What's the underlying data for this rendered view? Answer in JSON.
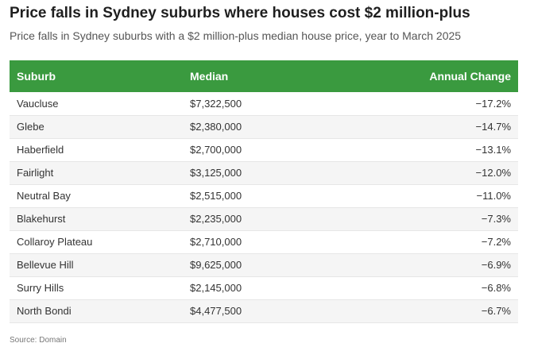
{
  "title": "Price falls in Sydney suburbs where houses cost $2 million-plus",
  "subtitle": "Price falls in Sydney suburbs with a $2 million-plus median house price, year to March 2025",
  "source": "Source: Domain",
  "chart_data": {
    "type": "table",
    "columns": [
      "Suburb",
      "Median",
      "Annual Change"
    ],
    "rows": [
      [
        "Vaucluse",
        "$7,322,500",
        "−17.2%"
      ],
      [
        "Glebe",
        "$2,380,000",
        "−14.7%"
      ],
      [
        "Haberfield",
        "$2,700,000",
        "−13.1%"
      ],
      [
        "Fairlight",
        "$3,125,000",
        "−12.0%"
      ],
      [
        "Neutral Bay",
        "$2,515,000",
        "−11.0%"
      ],
      [
        "Blakehurst",
        "$2,235,000",
        "−7.3%"
      ],
      [
        "Collaroy Plateau",
        "$2,710,000",
        "−7.2%"
      ],
      [
        "Bellevue Hill",
        "$9,625,000",
        "−6.9%"
      ],
      [
        "Surry Hills",
        "$2,145,000",
        "−6.8%"
      ],
      [
        "North Bondi",
        "$4,477,500",
        "−6.7%"
      ]
    ],
    "colors": {
      "header_bg": "#3a9a3f",
      "header_text": "#ffffff",
      "stripe": "#f5f5f5"
    }
  }
}
